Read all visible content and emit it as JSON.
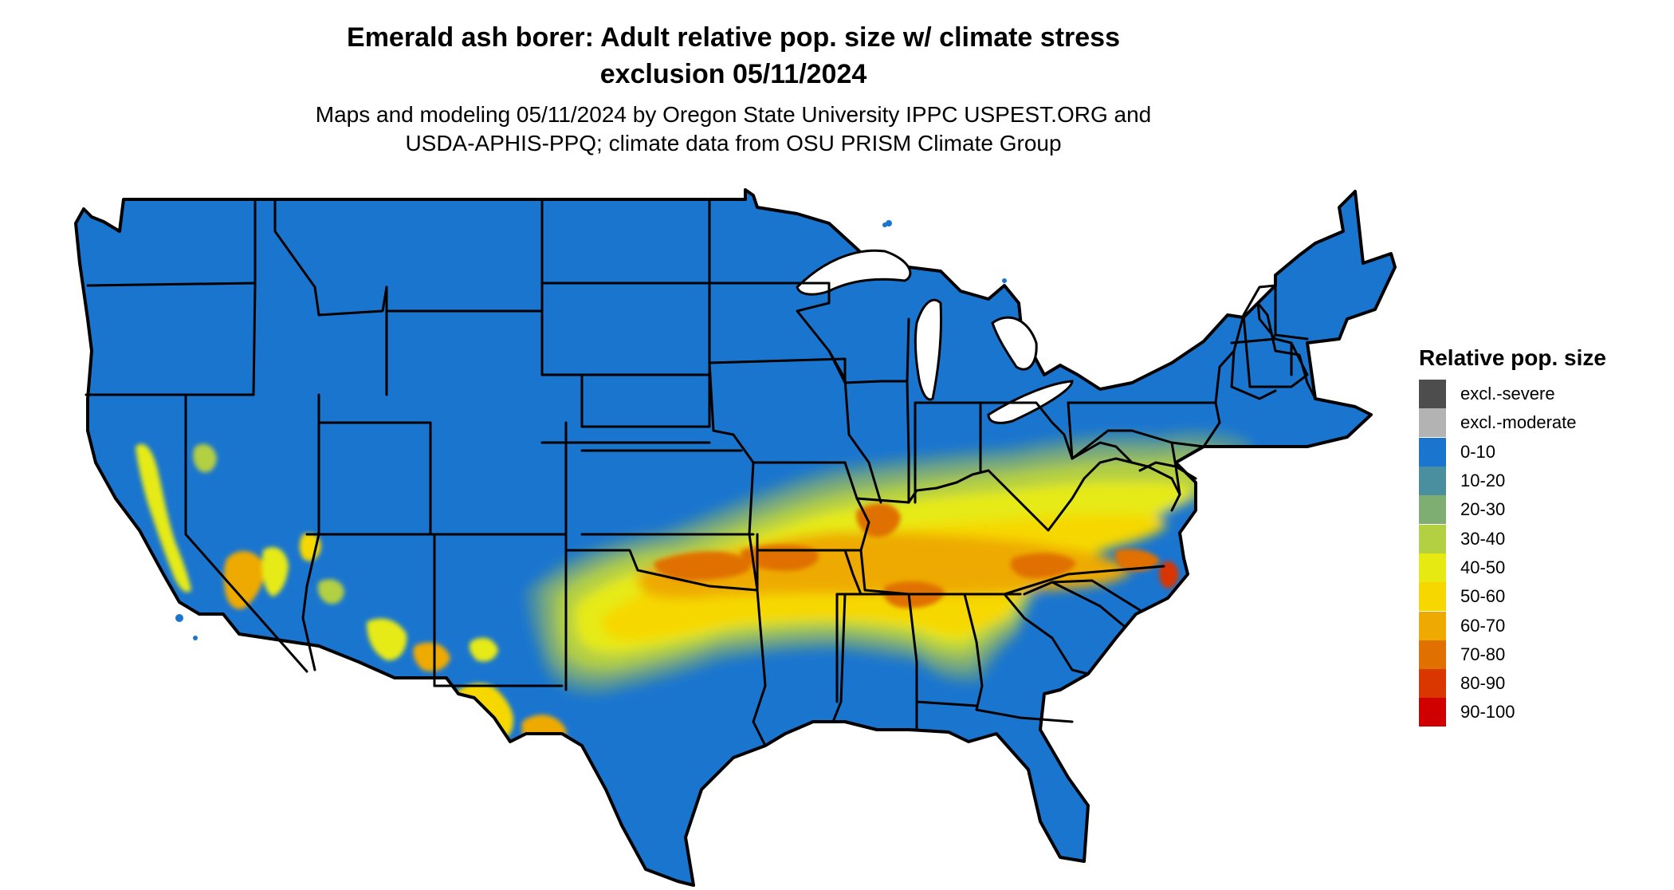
{
  "title": {
    "line1": "Emerald ash borer: Adult relative pop. size w/ climate stress",
    "line2": "exclusion 05/11/2024"
  },
  "subtitle": {
    "line1": "Maps and modeling 05/11/2024 by Oregon State University IPPC USPEST.ORG and",
    "line2": "USDA-APHIS-PPQ; climate data from OSU PRISM Climate Group"
  },
  "legend": {
    "title": "Relative pop. size",
    "items": [
      {
        "label": "excl.-severe",
        "color": "#4d4d4d"
      },
      {
        "label": "excl.-moderate",
        "color": "#b3b3b3"
      },
      {
        "label": "0-10",
        "color": "#1a75cf"
      },
      {
        "label": "10-20",
        "color": "#4a8fa0"
      },
      {
        "label": "20-30",
        "color": "#7fae72"
      },
      {
        "label": "30-40",
        "color": "#b3cf42"
      },
      {
        "label": "40-50",
        "color": "#e6ea12"
      },
      {
        "label": "50-60",
        "color": "#f6d800"
      },
      {
        "label": "60-70",
        "color": "#eeaa00"
      },
      {
        "label": "70-80",
        "color": "#e07100"
      },
      {
        "label": "80-90",
        "color": "#d93600"
      },
      {
        "label": "90-100",
        "color": "#d10000"
      }
    ]
  }
}
